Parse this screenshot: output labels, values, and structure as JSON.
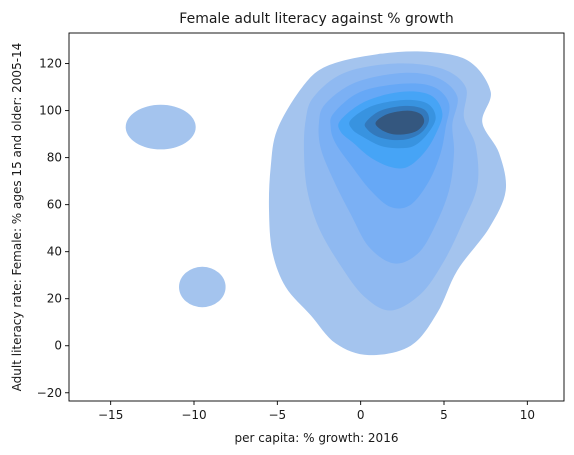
{
  "chart_data": {
    "type": "kde-filled-contour",
    "title": "Female adult literacy against % growth",
    "xlabel": "per capita: % growth: 2016",
    "ylabel": "Adult literacy rate: Female: % ages 15 and older: 2005-14",
    "xlim": [
      -17.5,
      12.2
    ],
    "ylim": [
      -23.5,
      133
    ],
    "x_ticks": [
      -15,
      -10,
      -5,
      0,
      5,
      10
    ],
    "y_ticks": [
      -20,
      0,
      20,
      40,
      60,
      80,
      100,
      120
    ],
    "grid": false,
    "legend": "none",
    "density_peak": {
      "x": 2.5,
      "y": 94
    },
    "isolated_regions": [
      {
        "x": -12,
        "y": 93
      },
      {
        "x": -9.5,
        "y": 25
      }
    ],
    "contour_levels": 8,
    "colors": {
      "levels": [
        "#a4c4ee",
        "#8fb9f1",
        "#7bb0f4",
        "#66a8f6",
        "#46a4f6",
        "#3893e0",
        "#3379bc",
        "#34577f"
      ]
    }
  }
}
